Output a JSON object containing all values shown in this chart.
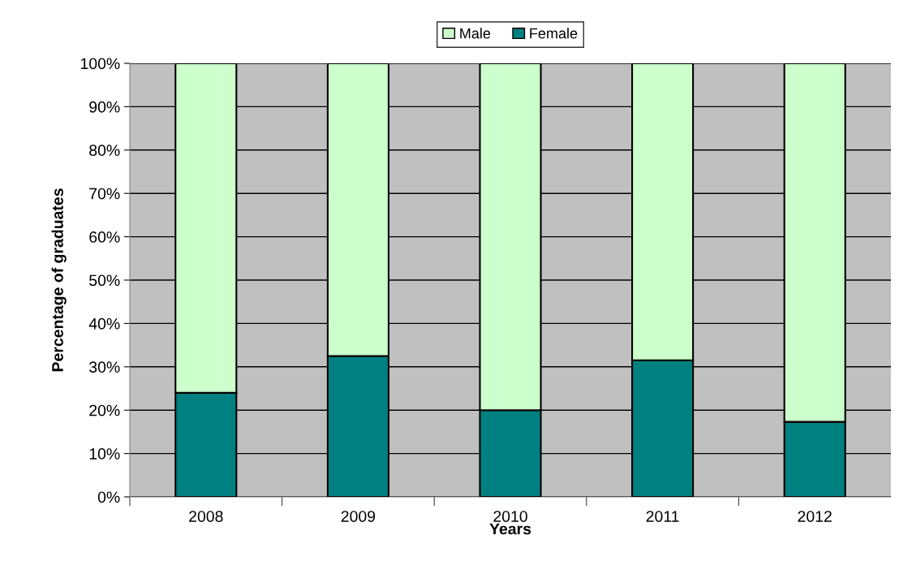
{
  "chart_data": {
    "type": "bar",
    "stacked": true,
    "xlabel": "Years",
    "ylabel": "Percentage of graduates",
    "categories": [
      "2008",
      "2009",
      "2010",
      "2011",
      "2012"
    ],
    "series": [
      {
        "name": "Female",
        "color": "#008080",
        "values": [
          24,
          32.5,
          20,
          31.5,
          17.3
        ]
      },
      {
        "name": "Male",
        "color": "#ccffcc",
        "values": [
          76,
          67.5,
          80,
          68.5,
          82.7
        ]
      }
    ],
    "ylim": [
      0,
      100
    ],
    "yticks": [
      {
        "value": 0,
        "label": "0%"
      },
      {
        "value": 10,
        "label": "10%"
      },
      {
        "value": 20,
        "label": "20%"
      },
      {
        "value": 30,
        "label": "30%"
      },
      {
        "value": 40,
        "label": "40%"
      },
      {
        "value": 50,
        "label": "50%"
      },
      {
        "value": 60,
        "label": "60%"
      },
      {
        "value": 70,
        "label": "70%"
      },
      {
        "value": 80,
        "label": "80%"
      },
      {
        "value": 90,
        "label": "90%"
      },
      {
        "value": 100,
        "label": "100%"
      }
    ],
    "grid": "y",
    "legend": "top"
  }
}
